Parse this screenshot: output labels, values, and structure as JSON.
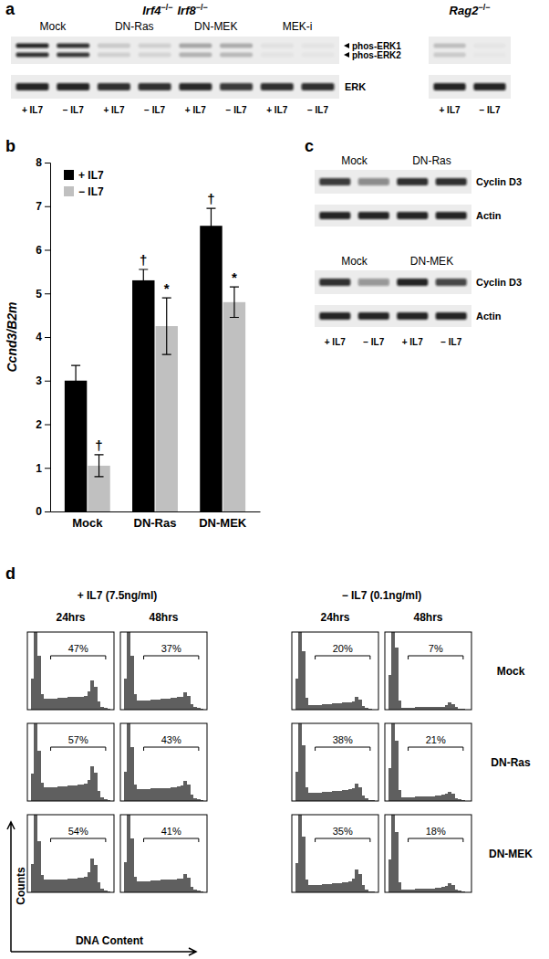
{
  "chart_data": [
    {
      "type": "blot",
      "title": "a",
      "blots": [
        {
          "genotype": [
            {
              "text": "Irf4",
              "sup": "−/−"
            },
            {
              "text": "Irf8",
              "sup": "−/−"
            }
          ],
          "groups": [
            "Mock",
            "DN-Ras",
            "DN-MEK",
            "MEK-i"
          ],
          "lanes": [
            "+ IL7",
            "− IL7",
            "+ IL7",
            "− IL7",
            "+ IL7",
            "− IL7",
            "+ IL7",
            "− IL7"
          ],
          "rows": [
            {
              "label": [
                "phos-ERK1",
                "phos-ERK2"
              ],
              "bands": [
                [
                  0.9,
                  0.85,
                  0.15,
                  0.12,
                  0.3,
                  0.28,
                  0.05,
                  0.04
                ],
                [
                  0.85,
                  0.82,
                  0.12,
                  0.1,
                  0.25,
                  0.22,
                  0.04,
                  0.03
                ]
              ]
            },
            {
              "label": [
                "ERK"
              ],
              "bands": [
                [
                  0.9,
                  0.9,
                  0.85,
                  0.85,
                  0.88,
                  0.8,
                  0.85,
                  0.85
                ]
              ]
            }
          ]
        },
        {
          "genotype": [
            {
              "text": "Rag2",
              "sup": "−/−"
            }
          ],
          "lanes": [
            "+ IL7",
            "− IL7"
          ],
          "rows": [
            {
              "bands": [
                [
                  0.2,
                  0.03
                ],
                [
                  0.15,
                  0.02
                ]
              ]
            },
            {
              "bands": [
                [
                  0.9,
                  0.9
                ]
              ]
            }
          ]
        }
      ]
    },
    {
      "type": "bar",
      "title": "b",
      "ylabel": "Ccnd3/B2m",
      "categories": [
        "Mock",
        "DN-Ras",
        "DN-MEK"
      ],
      "ylim": [
        0,
        8
      ],
      "yticks": [
        0,
        1,
        2,
        3,
        4,
        5,
        6,
        7,
        8
      ],
      "legend": "upper left",
      "series": [
        {
          "name": "+ IL7",
          "color": "#000000",
          "values": [
            3.0,
            5.3,
            6.55
          ],
          "errors": [
            0.35,
            0.25,
            0.4
          ],
          "annotations": [
            null,
            "†",
            "†"
          ]
        },
        {
          "name": "− IL7",
          "color": "#c0c0c0",
          "values": [
            1.05,
            4.25,
            4.8
          ],
          "errors": [
            0.25,
            0.65,
            0.35
          ],
          "annotations": [
            "†",
            "*",
            "*"
          ]
        }
      ]
    },
    {
      "type": "blot",
      "title": "c",
      "blots": [
        {
          "groups": [
            "Mock",
            "DN-Ras"
          ],
          "rows": [
            {
              "label": [
                "Cyclin D3"
              ],
              "bands": [
                [
                  0.8,
                  0.45,
                  0.85,
                  0.85
                ]
              ]
            },
            {
              "label": [
                "Actin"
              ],
              "bands": [
                [
                  0.9,
                  0.9,
                  0.9,
                  0.9
                ]
              ]
            }
          ]
        },
        {
          "groups": [
            "Mock",
            "DN-MEK"
          ],
          "lanes": [
            "+ IL7",
            "− IL7",
            "+ IL7",
            "− IL7"
          ],
          "rows": [
            {
              "label": [
                "Cyclin D3"
              ],
              "bands": [
                [
                  0.85,
                  0.4,
                  0.9,
                  0.75
                ]
              ]
            },
            {
              "label": [
                "Actin"
              ],
              "bands": [
                [
                  0.9,
                  0.9,
                  0.9,
                  0.9
                ]
              ]
            }
          ]
        }
      ]
    },
    {
      "type": "histogram",
      "title": "d",
      "xlabel": "DNA Content",
      "ylabel": "Counts",
      "bins": [
        0,
        1,
        2,
        3,
        4,
        5,
        6,
        7,
        8,
        9,
        10,
        11,
        12,
        13,
        14,
        15,
        16,
        17,
        18,
        19,
        20,
        21,
        22,
        23,
        24,
        25,
        26
      ],
      "xlim": [
        0,
        26
      ],
      "ylim": [
        0,
        100
      ],
      "tick_labels": false,
      "color": "#5f5f5f",
      "gate_range": [
        7,
        23.5
      ],
      "columns": [
        {
          "condition": "+ IL7 (7.5ng/ml)",
          "times": [
            "24hrs",
            "48hrs"
          ]
        },
        {
          "condition": "− IL7 (0.1ng/ml)",
          "times": [
            "24hrs",
            "48hrs"
          ]
        }
      ],
      "rows": [
        "Mock",
        "DN-Ras",
        "DN-MEK"
      ],
      "cells": [
        [
          {
            "values": [
              0,
              40,
              120,
              70,
              20,
              14,
              14,
              14,
              14,
              15,
              15,
              15,
              16,
              16,
              16,
              17,
              17,
              18,
              23,
              38,
              30,
              11,
              4,
              2,
              1,
              0
            ],
            "gate": {
              "value": 47,
              "label": "47%"
            }
          },
          {
            "values": [
              0,
              40,
              120,
              70,
              20,
              12,
              12,
              12,
              12,
              13,
              13,
              13,
              14,
              14,
              14,
              15,
              15,
              16,
              17,
              22,
              18,
              7,
              3,
              2,
              1,
              0
            ],
            "gate": {
              "value": 37,
              "label": "37%"
            }
          },
          {
            "values": [
              0,
              40,
              130,
              75,
              15,
              6,
              6,
              6,
              6,
              7,
              7,
              7,
              8,
              8,
              8,
              9,
              9,
              10,
              11,
              16,
              13,
              5,
              2,
              1,
              0,
              0
            ],
            "gate": {
              "value": 20,
              "label": "20%"
            }
          },
          {
            "values": [
              0,
              45,
              140,
              80,
              12,
              2,
              2,
              2,
              2,
              3,
              3,
              3,
              3,
              3,
              3,
              4,
              4,
              4,
              6,
              9,
              7,
              3,
              1,
              1,
              0,
              0
            ],
            "gate": {
              "value": 7,
              "label": "7%"
            }
          }
        ],
        [
          {
            "values": [
              0,
              35,
              115,
              65,
              24,
              18,
              18,
              18,
              18,
              19,
              19,
              19,
              20,
              20,
              20,
              21,
              21,
              22,
              27,
              45,
              36,
              13,
              5,
              2,
              1,
              0
            ],
            "gate": {
              "value": 57,
              "label": "57%"
            }
          },
          {
            "values": [
              0,
              38,
              120,
              70,
              21,
              15,
              15,
              15,
              15,
              16,
              16,
              16,
              17,
              17,
              17,
              18,
              18,
              19,
              20,
              26,
              21,
              8,
              3,
              2,
              1,
              0
            ],
            "gate": {
              "value": 43,
              "label": "43%"
            }
          },
          {
            "values": [
              0,
              38,
              125,
              72,
              18,
              11,
              11,
              11,
              11,
              12,
              12,
              12,
              13,
              13,
              13,
              14,
              14,
              15,
              16,
              22,
              18,
              7,
              3,
              1,
              1,
              0
            ],
            "gate": {
              "value": 38,
              "label": "38%"
            }
          },
          {
            "values": [
              0,
              42,
              135,
              78,
              14,
              5,
              5,
              5,
              5,
              6,
              6,
              6,
              6,
              6,
              6,
              7,
              7,
              8,
              9,
              12,
              10,
              4,
              2,
              1,
              0,
              0
            ],
            "gate": {
              "value": 21,
              "label": "21%"
            }
          }
        ],
        [
          {
            "values": [
              0,
              36,
              118,
              66,
              22,
              16,
              16,
              16,
              16,
              17,
              17,
              17,
              18,
              18,
              18,
              19,
              19,
              20,
              26,
              44,
              35,
              13,
              5,
              2,
              1,
              0
            ],
            "gate": {
              "value": 54,
              "label": "54%"
            }
          },
          {
            "values": [
              0,
              39,
              120,
              70,
              20,
              14,
              14,
              14,
              14,
              15,
              15,
              15,
              16,
              16,
              16,
              17,
              17,
              18,
              18,
              24,
              19,
              7,
              3,
              2,
              1,
              0
            ],
            "gate": {
              "value": 41,
              "label": "41%"
            }
          },
          {
            "values": [
              0,
              38,
              125,
              72,
              17,
              10,
              10,
              10,
              10,
              11,
              11,
              11,
              12,
              12,
              12,
              13,
              13,
              14,
              18,
              30,
              24,
              9,
              3,
              1,
              1,
              0
            ],
            "gate": {
              "value": 35,
              "label": "35%"
            }
          },
          {
            "values": [
              0,
              42,
              135,
              78,
              13,
              4,
              4,
              4,
              4,
              5,
              5,
              5,
              5,
              5,
              5,
              6,
              6,
              7,
              8,
              12,
              10,
              4,
              2,
              1,
              0,
              0
            ],
            "gate": {
              "value": 18,
              "label": "18%"
            }
          }
        ]
      ]
    }
  ]
}
